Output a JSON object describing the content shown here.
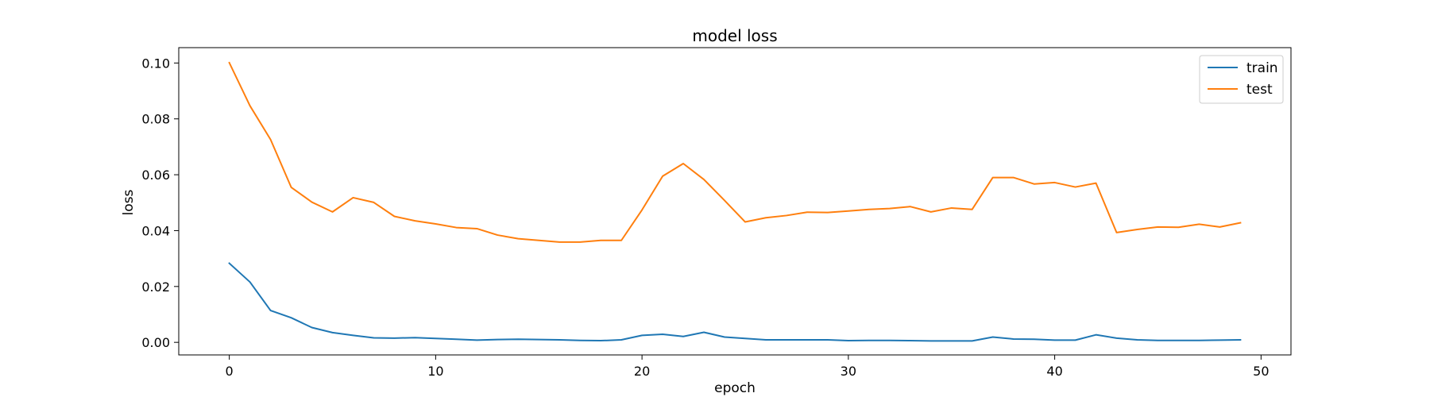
{
  "chart_data": {
    "type": "line",
    "title": "model loss",
    "xlabel": "epoch",
    "ylabel": "loss",
    "xlim": [
      -2.45,
      51.45
    ],
    "ylim": [
      -0.0045,
      0.1055
    ],
    "xticks": [
      0,
      10,
      20,
      30,
      40,
      50
    ],
    "xtick_labels": [
      "0",
      "10",
      "20",
      "30",
      "40",
      "50"
    ],
    "yticks": [
      0.0,
      0.02,
      0.04,
      0.06,
      0.08,
      0.1
    ],
    "ytick_labels": [
      "0.00",
      "0.02",
      "0.04",
      "0.06",
      "0.08",
      "0.10"
    ],
    "grid": false,
    "legend_position": "top-right",
    "x": [
      0,
      1,
      2,
      3,
      4,
      5,
      6,
      7,
      8,
      9,
      10,
      11,
      12,
      13,
      14,
      15,
      16,
      17,
      18,
      19,
      20,
      21,
      22,
      23,
      24,
      25,
      26,
      27,
      28,
      29,
      30,
      31,
      32,
      33,
      34,
      35,
      36,
      37,
      38,
      39,
      40,
      41,
      42,
      43,
      44,
      45,
      46,
      47,
      48,
      49
    ],
    "series": [
      {
        "name": "train",
        "color": "#1f77b4",
        "values": [
          0.0283,
          0.0216,
          0.0114,
          0.0088,
          0.0053,
          0.0035,
          0.0025,
          0.0016,
          0.0015,
          0.0017,
          0.0014,
          0.0011,
          0.0008,
          0.001,
          0.0011,
          0.001,
          0.0009,
          0.0007,
          0.0006,
          0.0009,
          0.0025,
          0.0029,
          0.0021,
          0.0036,
          0.0019,
          0.0014,
          0.0009,
          0.0009,
          0.0009,
          0.0009,
          0.0006,
          0.0007,
          0.0007,
          0.0006,
          0.0005,
          0.0005,
          0.0005,
          0.0019,
          0.0012,
          0.0011,
          0.0008,
          0.0008,
          0.0027,
          0.0015,
          0.0009,
          0.0007,
          0.0007,
          0.0007,
          0.0008,
          0.0009
        ]
      },
      {
        "name": "test",
        "color": "#ff7f0e",
        "values": [
          0.1001,
          0.0847,
          0.0726,
          0.0555,
          0.0502,
          0.0467,
          0.0518,
          0.0501,
          0.0451,
          0.0435,
          0.0424,
          0.0411,
          0.0407,
          0.0384,
          0.0371,
          0.0365,
          0.0359,
          0.0359,
          0.0365,
          0.0365,
          0.0474,
          0.0595,
          0.064,
          0.0583,
          0.0508,
          0.0431,
          0.0446,
          0.0454,
          0.0466,
          0.0465,
          0.047,
          0.0476,
          0.0479,
          0.0486,
          0.0467,
          0.0481,
          0.0476,
          0.059,
          0.059,
          0.0567,
          0.0572,
          0.0556,
          0.057,
          0.0393,
          0.0404,
          0.0413,
          0.0412,
          0.0423,
          0.0413,
          0.0428
        ]
      }
    ]
  }
}
